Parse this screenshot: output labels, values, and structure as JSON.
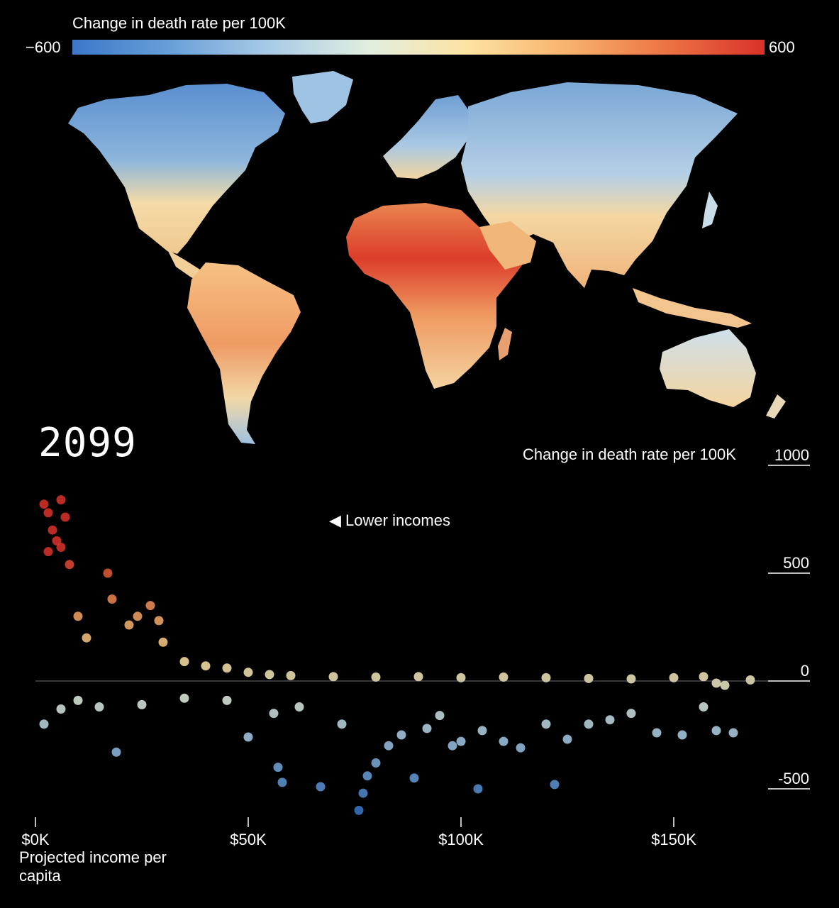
{
  "legend": {
    "title": "Change in death rate per 100K",
    "min_label": "−600",
    "max_label": "600",
    "min_value": -600,
    "max_value": 600,
    "colors": [
      "#3b78c8",
      "#6aa0d8",
      "#a9cbe6",
      "#e2eee0",
      "#fde3a2",
      "#f7b36d",
      "#ec7444",
      "#d9322a"
    ]
  },
  "year": "2099",
  "annotation": "◀ Lower incomes",
  "chart_data": {
    "type": "scatter",
    "title": "",
    "xlabel": "Projected income per capita",
    "ylabel": "Change in death rate per 100K",
    "xlim": [
      0,
      175000
    ],
    "ylim": [
      -650,
      1000
    ],
    "x_ticks": [
      {
        "value": 0,
        "label": "$0K"
      },
      {
        "value": 50000,
        "label": "$50K"
      },
      {
        "value": 100000,
        "label": "$100K"
      },
      {
        "value": 150000,
        "label": "$150K"
      }
    ],
    "y_ticks": [
      {
        "value": 1000,
        "label": "1000"
      },
      {
        "value": 500,
        "label": "500"
      },
      {
        "value": 0,
        "label": "0"
      },
      {
        "value": -500,
        "label": "-500"
      }
    ],
    "series": [
      {
        "points": [
          [
            2000,
            820
          ],
          [
            3000,
            780
          ],
          [
            4000,
            700
          ],
          [
            5000,
            650
          ],
          [
            6000,
            840
          ],
          [
            7000,
            760
          ],
          [
            3000,
            600
          ],
          [
            6000,
            620
          ],
          [
            8000,
            540
          ],
          [
            10000,
            300
          ],
          [
            12000,
            200
          ],
          [
            17000,
            500
          ],
          [
            18000,
            380
          ],
          [
            22000,
            260
          ],
          [
            24000,
            300
          ],
          [
            27000,
            350
          ],
          [
            29000,
            280
          ],
          [
            30000,
            180
          ],
          [
            35000,
            90
          ],
          [
            40000,
            70
          ],
          [
            45000,
            60
          ],
          [
            50000,
            40
          ],
          [
            55000,
            30
          ],
          [
            60000,
            25
          ],
          [
            70000,
            20
          ],
          [
            80000,
            18
          ],
          [
            90000,
            20
          ],
          [
            100000,
            15
          ],
          [
            110000,
            18
          ],
          [
            120000,
            15
          ],
          [
            130000,
            12
          ],
          [
            140000,
            10
          ],
          [
            150000,
            15
          ],
          [
            157000,
            20
          ],
          [
            160000,
            -10
          ],
          [
            162000,
            -20
          ],
          [
            168000,
            5
          ],
          [
            2000,
            -200
          ],
          [
            6000,
            -130
          ],
          [
            10000,
            -90
          ],
          [
            15000,
            -120
          ],
          [
            19000,
            -330
          ],
          [
            25000,
            -110
          ],
          [
            35000,
            -80
          ],
          [
            45000,
            -90
          ],
          [
            50000,
            -260
          ],
          [
            56000,
            -150
          ],
          [
            57000,
            -400
          ],
          [
            58000,
            -470
          ],
          [
            62000,
            -120
          ],
          [
            67000,
            -490
          ],
          [
            72000,
            -200
          ],
          [
            76000,
            -600
          ],
          [
            77000,
            -520
          ],
          [
            78000,
            -440
          ],
          [
            80000,
            -380
          ],
          [
            83000,
            -300
          ],
          [
            86000,
            -250
          ],
          [
            89000,
            -450
          ],
          [
            92000,
            -220
          ],
          [
            95000,
            -160
          ],
          [
            98000,
            -300
          ],
          [
            100000,
            -280
          ],
          [
            104000,
            -500
          ],
          [
            105000,
            -230
          ],
          [
            110000,
            -280
          ],
          [
            114000,
            -310
          ],
          [
            120000,
            -200
          ],
          [
            122000,
            -480
          ],
          [
            125000,
            -270
          ],
          [
            130000,
            -200
          ],
          [
            135000,
            -180
          ],
          [
            140000,
            -150
          ],
          [
            146000,
            -240
          ],
          [
            152000,
            -250
          ],
          [
            157000,
            -120
          ],
          [
            160000,
            -230
          ],
          [
            164000,
            -240
          ]
        ]
      }
    ]
  }
}
